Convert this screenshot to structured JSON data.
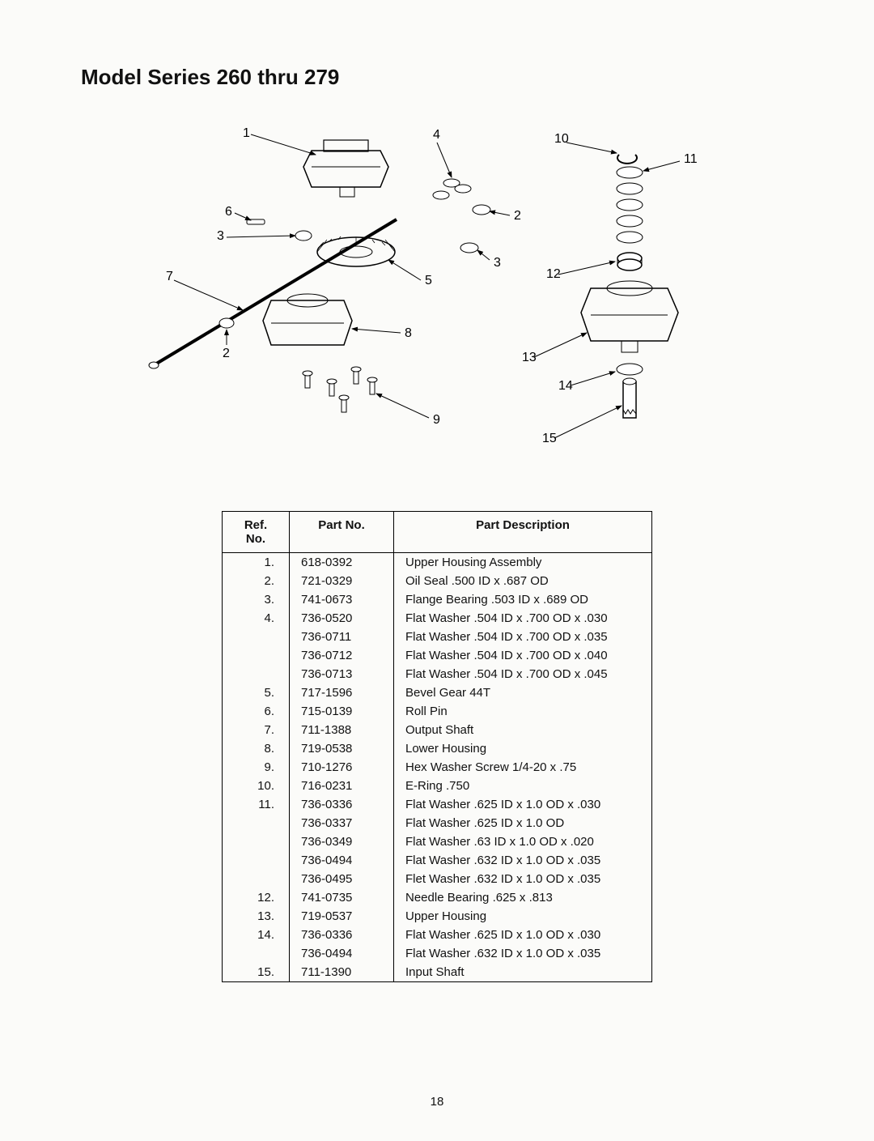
{
  "title": "Model Series 260 thru 279",
  "page_number": "18",
  "table": {
    "headers": [
      "Ref.\nNo.",
      "Part No.",
      "Part Description"
    ],
    "rows": [
      {
        "ref": "1.",
        "pn": "618-0392",
        "desc": "Upper Housing Assembly"
      },
      {
        "ref": "2.",
        "pn": "721-0329",
        "desc": "Oil Seal .500 ID x .687 OD"
      },
      {
        "ref": "3.",
        "pn": "741-0673",
        "desc": "Flange Bearing .503 ID x .689 OD"
      },
      {
        "ref": "4.",
        "pn": "736-0520",
        "desc": "Flat Washer .504 ID x .700 OD x .030"
      },
      {
        "ref": "",
        "pn": "736-0711",
        "desc": "Flat Washer .504 ID x .700 OD x .035"
      },
      {
        "ref": "",
        "pn": "736-0712",
        "desc": "Flat Washer .504 ID x .700 OD x .040"
      },
      {
        "ref": "",
        "pn": "736-0713",
        "desc": "Flat Washer .504 ID x .700 OD x .045"
      },
      {
        "ref": "5.",
        "pn": "717-1596",
        "desc": "Bevel Gear 44T"
      },
      {
        "ref": "6.",
        "pn": "715-0139",
        "desc": "Roll Pin"
      },
      {
        "ref": "7.",
        "pn": "711-1388",
        "desc": "Output Shaft"
      },
      {
        "ref": "8.",
        "pn": "719-0538",
        "desc": "Lower Housing"
      },
      {
        "ref": "9.",
        "pn": "710-1276",
        "desc": "Hex Washer Screw 1/4-20 x .75"
      },
      {
        "ref": "10.",
        "pn": "716-0231",
        "desc": "E-Ring .750"
      },
      {
        "ref": "11.",
        "pn": "736-0336",
        "desc": "Flat Washer .625 ID x 1.0 OD x .030"
      },
      {
        "ref": "",
        "pn": "736-0337",
        "desc": "Flat Washer .625 ID x 1.0 OD"
      },
      {
        "ref": "",
        "pn": "736-0349",
        "desc": "Flat Washer .63 ID x 1.0 OD x .020"
      },
      {
        "ref": "",
        "pn": "736-0494",
        "desc": "Flat Washer .632 ID x 1.0 OD x .035"
      },
      {
        "ref": "",
        "pn": "736-0495",
        "desc": "Flet Washer .632 ID x  1.0 OD x .035"
      },
      {
        "ref": "12.",
        "pn": "741-0735",
        "desc": "Needle Bearing .625 x .813"
      },
      {
        "ref": "13.",
        "pn": "719-0537",
        "desc": "Upper Housing"
      },
      {
        "ref": "14.",
        "pn": "736-0336",
        "desc": "Flat Washer .625 ID x 1.0 OD x .030"
      },
      {
        "ref": "",
        "pn": "736-0494",
        "desc": "Flat Washer .632 ID x 1.0 OD x .035"
      },
      {
        "ref": "15.",
        "pn": "711-1390",
        "desc": "Input Shaft"
      }
    ]
  },
  "callouts": {
    "c1": "1",
    "c2": "2",
    "c2b": "2",
    "c3": "3",
    "c3b": "3",
    "c4": "4",
    "c5": "5",
    "c6": "6",
    "c7": "7",
    "c8": "8",
    "c9": "9",
    "c10": "10",
    "c11": "11",
    "c12": "12",
    "c13": "13",
    "c14": "14",
    "c15": "15"
  },
  "colors": {
    "stroke": "#000000",
    "page_bg": "#fbfbf9"
  }
}
